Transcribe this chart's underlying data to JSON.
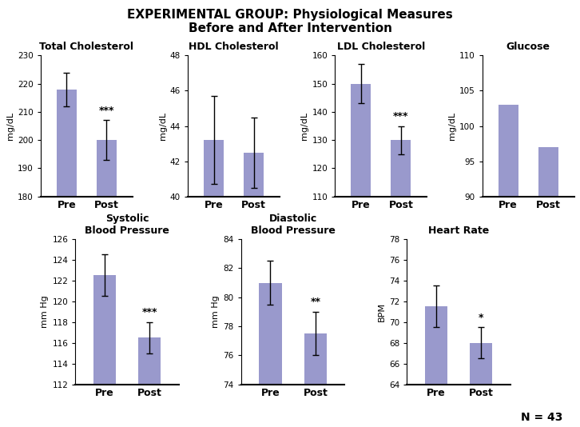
{
  "title": "EXPERIMENTAL GROUP: Physiological Measures\nBefore and After Intervention",
  "title_fontsize": 11,
  "bar_color": "#9999CC",
  "bar_width": 0.5,
  "subplots": [
    {
      "title": "Total Cholesterol",
      "ylabel": "mg/dL",
      "categories": [
        "Pre",
        "Post"
      ],
      "values": [
        218,
        200
      ],
      "errors": [
        6,
        7
      ],
      "ylim": [
        180,
        230
      ],
      "yticks": [
        180,
        190,
        200,
        210,
        220,
        230
      ],
      "significance": [
        "",
        "***"
      ],
      "sig_fontsize": 9
    },
    {
      "title": "HDL Cholesterol",
      "ylabel": "mg/dL",
      "categories": [
        "Pre",
        "Post"
      ],
      "values": [
        43.2,
        42.5
      ],
      "errors": [
        2.5,
        2.0
      ],
      "ylim": [
        40,
        48
      ],
      "yticks": [
        40,
        42,
        44,
        46,
        48
      ],
      "significance": [
        "",
        ""
      ],
      "sig_fontsize": 9
    },
    {
      "title": "LDL Cholesterol",
      "ylabel": "mg/dL",
      "categories": [
        "Pre",
        "Post"
      ],
      "values": [
        150,
        130
      ],
      "errors": [
        7,
        5
      ],
      "ylim": [
        110,
        160
      ],
      "yticks": [
        110,
        120,
        130,
        140,
        150,
        160
      ],
      "significance": [
        "",
        "***"
      ],
      "sig_fontsize": 9
    },
    {
      "title": "Glucose",
      "ylabel": "mg/dL",
      "categories": [
        "Pre",
        "Post"
      ],
      "values": [
        103,
        97
      ],
      "errors": [
        0,
        0
      ],
      "ylim": [
        90,
        110
      ],
      "yticks": [
        90,
        95,
        100,
        105,
        110
      ],
      "significance": [
        "",
        ""
      ],
      "sig_fontsize": 9
    },
    {
      "title": "Systolic\nBlood Pressure",
      "ylabel": "mm Hg",
      "categories": [
        "Pre",
        "Post"
      ],
      "values": [
        122.5,
        116.5
      ],
      "errors": [
        2.0,
        1.5
      ],
      "ylim": [
        112,
        126
      ],
      "yticks": [
        112,
        114,
        116,
        118,
        120,
        122,
        124,
        126
      ],
      "significance": [
        "",
        "***"
      ],
      "sig_fontsize": 9
    },
    {
      "title": "Diastolic\nBlood Pressure",
      "ylabel": "mm Hg",
      "categories": [
        "Pre",
        "Post"
      ],
      "values": [
        81,
        77.5
      ],
      "errors": [
        1.5,
        1.5
      ],
      "ylim": [
        74,
        84
      ],
      "yticks": [
        74,
        76,
        78,
        80,
        82,
        84
      ],
      "significance": [
        "",
        "**"
      ],
      "sig_fontsize": 9
    },
    {
      "title": "Heart Rate",
      "ylabel": "BPM",
      "categories": [
        "Pre",
        "Post"
      ],
      "values": [
        71.5,
        68
      ],
      "errors": [
        2.0,
        1.5
      ],
      "ylim": [
        64,
        78
      ],
      "yticks": [
        64,
        66,
        68,
        70,
        72,
        74,
        76,
        78
      ],
      "significance": [
        "",
        "*"
      ],
      "sig_fontsize": 9
    }
  ],
  "n_label": "N = 43",
  "n_fontsize": 10
}
